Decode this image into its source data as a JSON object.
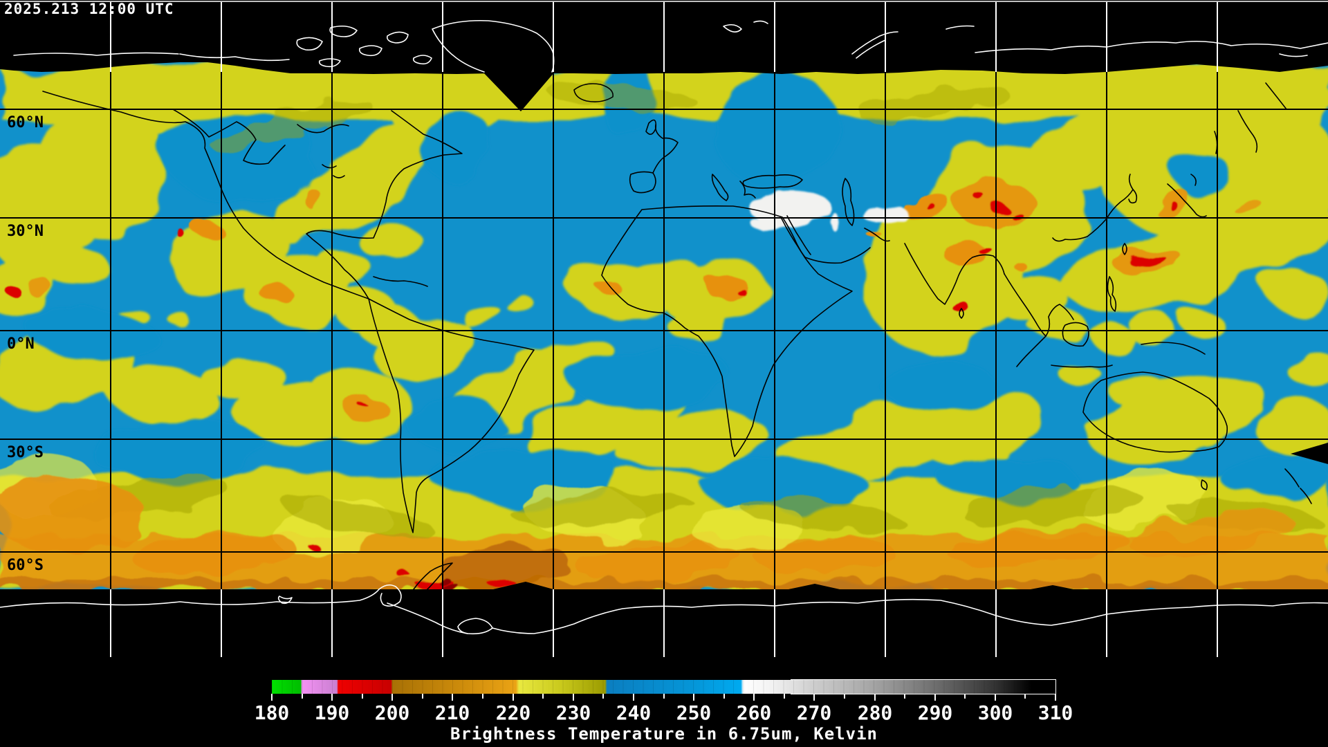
{
  "header": {
    "timestamp": "2025.213 12:00 UTC"
  },
  "map": {
    "latitude_labels": [
      "60°N",
      "30°N",
      "0°N",
      "30°S",
      "60°S"
    ],
    "grid": {
      "longitude_spacing_deg": 30,
      "latitude_spacing_deg": 30
    }
  },
  "colorbar": {
    "unit_min": 180,
    "unit_max": 310,
    "major_tick_labels": [
      "180",
      "190",
      "200",
      "210",
      "220",
      "230",
      "240",
      "250",
      "260",
      "270",
      "280",
      "290",
      "300",
      "310"
    ],
    "minor_tick_step": 5,
    "gradient_stops": [
      [
        180,
        "#00e000"
      ],
      [
        184.8,
        "#00bd00"
      ],
      [
        185,
        "#f492f4"
      ],
      [
        190.8,
        "#c97fd0"
      ],
      [
        191,
        "#ef0000"
      ],
      [
        199.8,
        "#c80000"
      ],
      [
        200,
        "#a87105"
      ],
      [
        212,
        "#cf8d0c"
      ],
      [
        220.5,
        "#eaa315"
      ],
      [
        221,
        "#e9e940"
      ],
      [
        228,
        "#c9c91c"
      ],
      [
        235.3,
        "#9b9b00"
      ],
      [
        235.6,
        "#0b7ec0"
      ],
      [
        250,
        "#0596d8"
      ],
      [
        257.8,
        "#00aaf0"
      ],
      [
        258.2,
        "#ffffff"
      ],
      [
        263,
        "#f2f2f2"
      ],
      [
        270,
        "#cdcdcd"
      ],
      [
        280,
        "#a3a3a3"
      ],
      [
        290,
        "#6e6e6e"
      ],
      [
        300,
        "#333333"
      ],
      [
        306,
        "#000000"
      ],
      [
        310,
        "#000000"
      ]
    ]
  },
  "caption": "Brightness Temperature in 6.75um, Kelvin",
  "palette": {
    "background": "#000000",
    "ocean_dry": "#1191CB",
    "moist": "#D3D31E",
    "bright_moist": "#E9E93A",
    "olive": "#A4A406",
    "cold_cloud_orange": "#E79110",
    "deep_orange": "#BE6A07",
    "very_cold_red": "#DC0202",
    "extreme_cold_darkred": "#8B0000",
    "warm_dry_white": "#F2F2F0",
    "grid_on_data": "#000000",
    "grid_on_space": "#FFFFFF",
    "coast_on_data": "#000000",
    "coast_on_space": "#FFFFFF",
    "label_text": "#000000",
    "header_text": "#FFFFFF"
  }
}
